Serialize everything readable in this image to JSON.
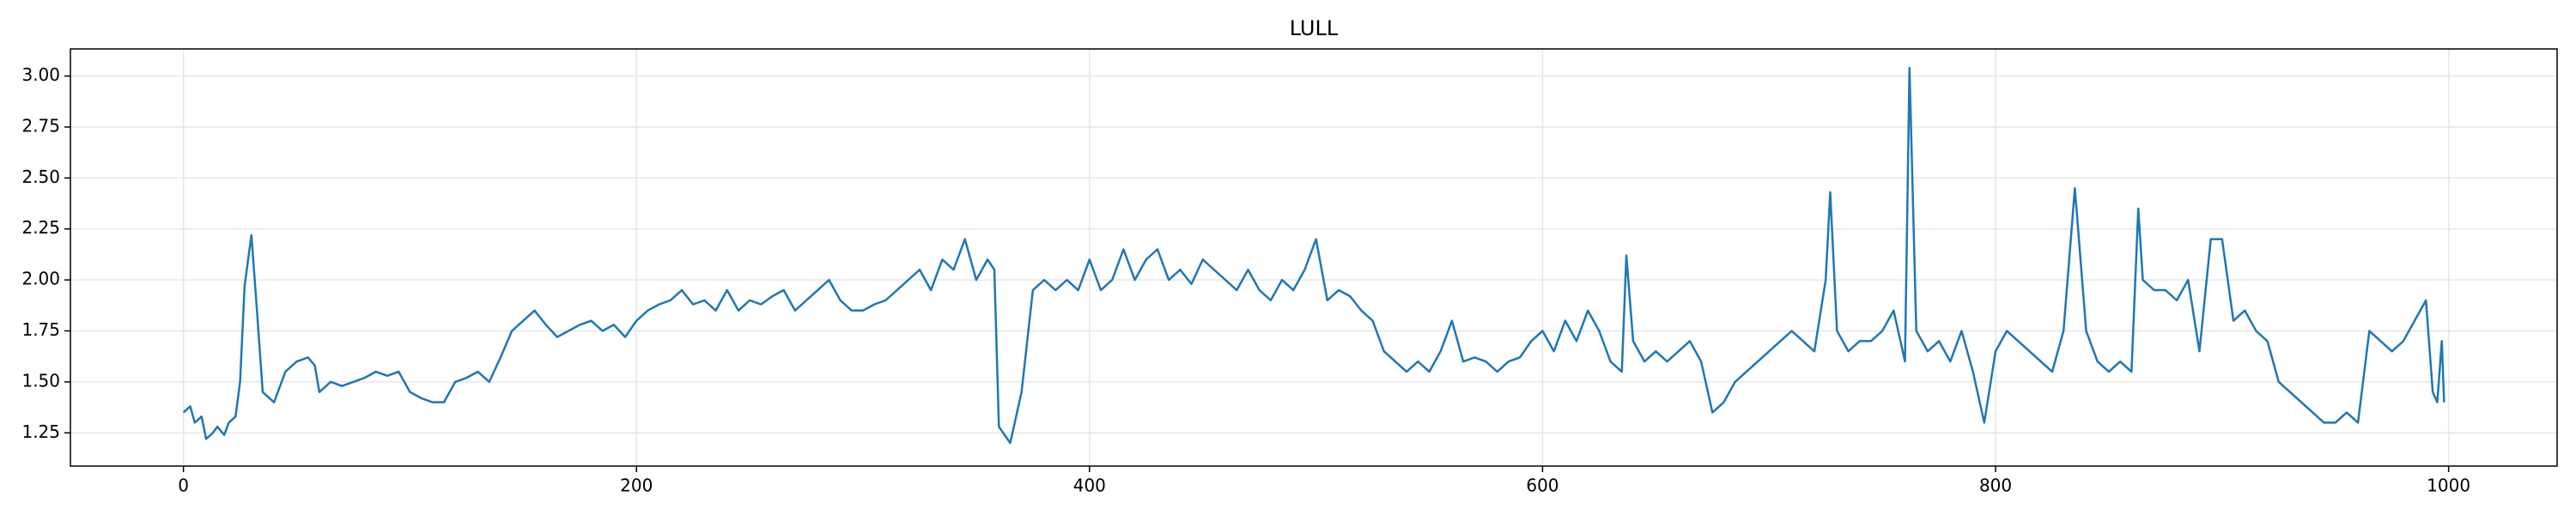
{
  "chart_data": {
    "type": "line",
    "title": "LULL",
    "x": [
      0,
      3,
      5,
      8,
      10,
      13,
      15,
      18,
      20,
      23,
      25,
      27,
      30,
      32,
      35,
      40,
      45,
      50,
      55,
      58,
      60,
      65,
      70,
      75,
      80,
      85,
      90,
      95,
      100,
      105,
      110,
      115,
      120,
      125,
      130,
      135,
      140,
      145,
      150,
      155,
      160,
      165,
      170,
      175,
      180,
      185,
      190,
      195,
      200,
      205,
      210,
      215,
      220,
      225,
      230,
      235,
      240,
      245,
      250,
      255,
      260,
      265,
      270,
      275,
      280,
      285,
      290,
      295,
      300,
      305,
      310,
      315,
      320,
      325,
      330,
      335,
      340,
      345,
      350,
      355,
      358,
      360,
      365,
      370,
      375,
      380,
      385,
      390,
      395,
      400,
      405,
      410,
      415,
      420,
      425,
      430,
      435,
      440,
      445,
      450,
      455,
      460,
      465,
      470,
      475,
      480,
      485,
      490,
      495,
      500,
      505,
      510,
      515,
      520,
      525,
      530,
      535,
      540,
      545,
      550,
      555,
      560,
      565,
      570,
      575,
      580,
      585,
      590,
      595,
      600,
      605,
      610,
      615,
      620,
      625,
      630,
      635,
      637,
      640,
      645,
      650,
      655,
      660,
      665,
      670,
      675,
      680,
      685,
      690,
      695,
      700,
      705,
      710,
      715,
      720,
      725,
      727,
      730,
      735,
      740,
      745,
      750,
      755,
      760,
      762,
      765,
      770,
      775,
      780,
      785,
      790,
      795,
      800,
      805,
      810,
      815,
      820,
      825,
      830,
      835,
      840,
      845,
      850,
      855,
      860,
      863,
      865,
      870,
      875,
      880,
      885,
      890,
      895,
      900,
      905,
      910,
      915,
      920,
      925,
      930,
      935,
      940,
      945,
      950,
      955,
      960,
      965,
      970,
      975,
      980,
      985,
      990,
      993,
      995,
      997,
      998
    ],
    "series": [
      {
        "name": "LULL",
        "color": "#1f77b4",
        "values": [
          1.35,
          1.38,
          1.3,
          1.33,
          1.22,
          1.25,
          1.28,
          1.24,
          1.3,
          1.33,
          1.5,
          1.97,
          2.22,
          1.92,
          1.45,
          1.4,
          1.55,
          1.6,
          1.62,
          1.58,
          1.45,
          1.5,
          1.48,
          1.5,
          1.52,
          1.55,
          1.53,
          1.55,
          1.45,
          1.42,
          1.4,
          1.4,
          1.5,
          1.52,
          1.55,
          1.5,
          1.62,
          1.75,
          1.8,
          1.85,
          1.78,
          1.72,
          1.75,
          1.78,
          1.8,
          1.75,
          1.78,
          1.72,
          1.8,
          1.85,
          1.88,
          1.9,
          1.95,
          1.88,
          1.9,
          1.85,
          1.95,
          1.85,
          1.9,
          1.88,
          1.92,
          1.95,
          1.85,
          1.9,
          1.95,
          2.0,
          1.9,
          1.85,
          1.85,
          1.88,
          1.9,
          1.95,
          2.0,
          2.05,
          1.95,
          2.1,
          2.05,
          2.2,
          2.0,
          2.1,
          2.05,
          1.28,
          1.2,
          1.45,
          1.95,
          2.0,
          1.95,
          2.0,
          1.95,
          2.1,
          1.95,
          2.0,
          2.15,
          2.0,
          2.1,
          2.15,
          2.0,
          2.05,
          1.98,
          2.1,
          2.05,
          2.0,
          1.95,
          2.05,
          1.95,
          1.9,
          2.0,
          1.95,
          2.05,
          2.2,
          1.9,
          1.95,
          1.92,
          1.85,
          1.8,
          1.65,
          1.6,
          1.55,
          1.6,
          1.55,
          1.65,
          1.8,
          1.6,
          1.62,
          1.6,
          1.55,
          1.6,
          1.62,
          1.7,
          1.75,
          1.65,
          1.8,
          1.7,
          1.85,
          1.75,
          1.6,
          1.55,
          2.12,
          1.7,
          1.6,
          1.65,
          1.6,
          1.65,
          1.7,
          1.6,
          1.35,
          1.4,
          1.5,
          1.55,
          1.6,
          1.65,
          1.7,
          1.75,
          1.7,
          1.65,
          2.0,
          2.43,
          1.75,
          1.65,
          1.7,
          1.7,
          1.75,
          1.85,
          1.6,
          3.04,
          1.75,
          1.65,
          1.7,
          1.6,
          1.75,
          1.55,
          1.3,
          1.65,
          1.75,
          1.7,
          1.65,
          1.6,
          1.55,
          1.75,
          2.45,
          1.75,
          1.6,
          1.55,
          1.6,
          1.55,
          2.35,
          2.0,
          1.95,
          1.95,
          1.9,
          2.0,
          1.65,
          2.2,
          2.2,
          1.8,
          1.85,
          1.75,
          1.7,
          1.5,
          1.45,
          1.4,
          1.35,
          1.3,
          1.3,
          1.35,
          1.3,
          1.75,
          1.7,
          1.65,
          1.7,
          1.8,
          1.9,
          1.45,
          1.4,
          1.7,
          1.4
        ]
      }
    ],
    "xlim": [
      -49.9,
      1047.9
    ],
    "xticks": [
      0,
      200,
      400,
      600,
      800,
      1000
    ],
    "ylim": [
      1.087,
      3.133
    ],
    "yticks": [
      1.25,
      {
        "value": 1.5,
        "label": "1.50"
      },
      1.75,
      {
        "value": 2,
        "label": "2.00"
      },
      2.25,
      {
        "value": 2.5,
        "label": "2.50"
      },
      2.75,
      {
        "value": 3,
        "label": "3.00"
      }
    ],
    "grid": true
  }
}
